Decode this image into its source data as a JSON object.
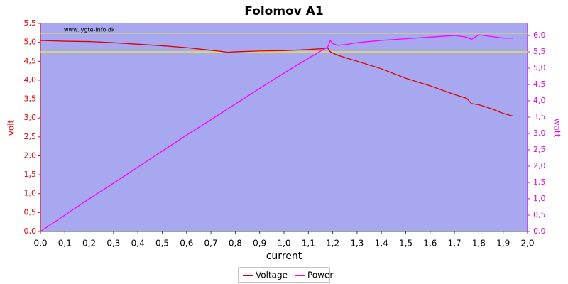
{
  "chart_data": {
    "type": "line",
    "title": "Folomov A1",
    "watermark": "www.lygte-info.dk",
    "xlabel": "current",
    "ylabel": "volt",
    "y2label": "watt",
    "x": [
      0,
      0.1,
      0.2,
      0.3,
      0.4,
      0.5,
      0.6,
      0.7,
      0.77,
      0.8,
      0.9,
      1.0,
      1.1,
      1.15,
      1.18,
      1.19,
      1.2,
      1.22,
      1.25,
      1.3,
      1.4,
      1.5,
      1.6,
      1.7,
      1.75,
      1.77,
      1.8,
      1.85,
      1.9,
      1.94
    ],
    "series": [
      {
        "name": "Voltage",
        "color": "#e00000",
        "axis": "y",
        "values": [
          5.05,
          5.03,
          5.02,
          4.99,
          4.95,
          4.91,
          4.86,
          4.79,
          4.74,
          4.75,
          4.77,
          4.78,
          4.81,
          4.83,
          4.85,
          4.75,
          4.72,
          4.66,
          4.6,
          4.5,
          4.3,
          4.05,
          3.85,
          3.62,
          3.52,
          3.38,
          3.35,
          3.25,
          3.12,
          3.05
        ]
      },
      {
        "name": "Power",
        "color": "#ff00ff",
        "axis": "y2",
        "values": [
          0,
          0.5,
          1.0,
          1.48,
          1.97,
          2.46,
          2.95,
          3.42,
          3.76,
          3.9,
          4.38,
          4.85,
          5.3,
          5.52,
          5.65,
          5.85,
          5.75,
          5.7,
          5.72,
          5.78,
          5.85,
          5.9,
          5.95,
          6.0,
          5.95,
          5.88,
          6.02,
          5.97,
          5.92,
          5.92
        ]
      }
    ],
    "reference_lines": {
      "values": [
        5.24,
        4.75
      ],
      "color": "#ffff00"
    },
    "xlim": [
      0,
      2.0
    ],
    "ylim": [
      0,
      5.5
    ],
    "y2lim": [
      0,
      6.37
    ],
    "xticks": [
      {
        "value": 0,
        "label": "0,0"
      },
      {
        "value": 0.1,
        "label": "0,1"
      },
      {
        "value": 0.2,
        "label": "0,2"
      },
      {
        "value": 0.3,
        "label": "0,3"
      },
      {
        "value": 0.4,
        "label": "0,4"
      },
      {
        "value": 0.5,
        "label": "0,5"
      },
      {
        "value": 0.6,
        "label": "0,6"
      },
      {
        "value": 0.7,
        "label": "0,7"
      },
      {
        "value": 0.8,
        "label": "0,8"
      },
      {
        "value": 0.9,
        "label": "0,9"
      },
      {
        "value": 1.0,
        "label": "1,0"
      },
      {
        "value": 1.1,
        "label": "1,1"
      },
      {
        "value": 1.2,
        "label": "1,2"
      },
      {
        "value": 1.3,
        "label": "1,3"
      },
      {
        "value": 1.4,
        "label": "1,4"
      },
      {
        "value": 1.5,
        "label": "1,5"
      },
      {
        "value": 1.6,
        "label": "1,6"
      },
      {
        "value": 1.7,
        "label": "1,7"
      },
      {
        "value": 1.8,
        "label": "1,8"
      },
      {
        "value": 1.9,
        "label": "1,9"
      },
      {
        "value": 2.0,
        "label": "2,0"
      }
    ],
    "yticks": [
      {
        "value": 0,
        "label": "0,0"
      },
      {
        "value": 0.5,
        "label": "0,5"
      },
      {
        "value": 1.0,
        "label": "1,0"
      },
      {
        "value": 1.5,
        "label": "1,5"
      },
      {
        "value": 2.0,
        "label": "2,0"
      },
      {
        "value": 2.5,
        "label": "2,5"
      },
      {
        "value": 3.0,
        "label": "3,0"
      },
      {
        "value": 3.5,
        "label": "3,5"
      },
      {
        "value": 4.0,
        "label": "4,0"
      },
      {
        "value": 4.5,
        "label": "4,5"
      },
      {
        "value": 5.0,
        "label": "5,0"
      },
      {
        "value": 5.5,
        "label": "5,5"
      }
    ],
    "y2ticks": [
      {
        "value": 0,
        "label": "0,0"
      },
      {
        "value": 0.5,
        "label": "0,5"
      },
      {
        "value": 1.0,
        "label": "1,0"
      },
      {
        "value": 1.5,
        "label": "1,5"
      },
      {
        "value": 2.0,
        "label": "2,0"
      },
      {
        "value": 2.5,
        "label": "2,5"
      },
      {
        "value": 3.0,
        "label": "3,0"
      },
      {
        "value": 3.5,
        "label": "3,5"
      },
      {
        "value": 4.0,
        "label": "4,0"
      },
      {
        "value": 4.5,
        "label": "4,5"
      },
      {
        "value": 5.0,
        "label": "5,0"
      },
      {
        "value": 5.5,
        "label": "5,5"
      },
      {
        "value": 6.0,
        "label": "6,0"
      }
    ],
    "grid": false,
    "legend": "bottom"
  }
}
